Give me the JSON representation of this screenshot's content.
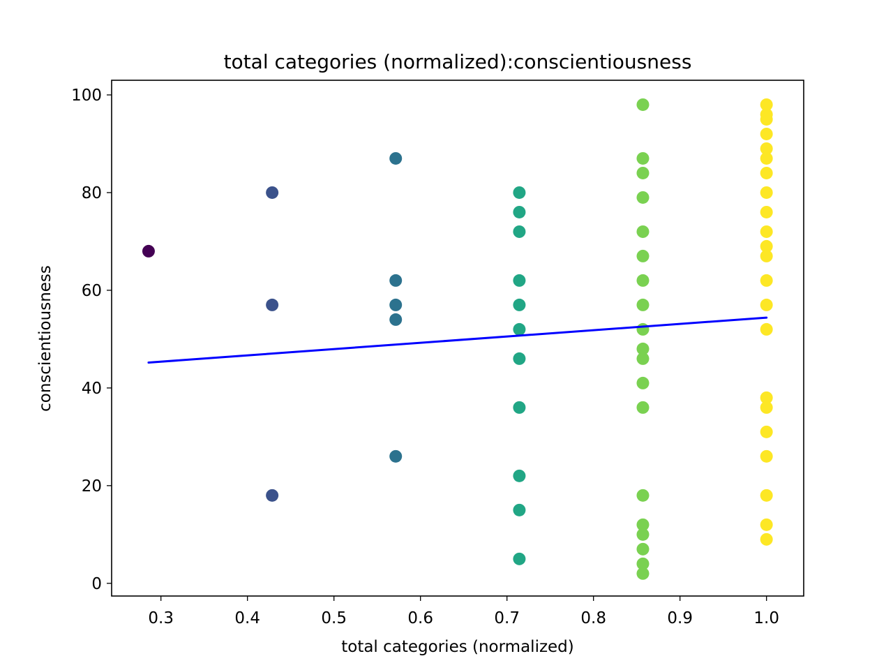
{
  "chart_data": {
    "type": "scatter",
    "title": "total categories (normalized):conscientiousness",
    "xlabel": "total categories (normalized)",
    "ylabel": "conscientiousness",
    "xlim": [
      0.243,
      1.043
    ],
    "ylim": [
      -2.6,
      103.0
    ],
    "xticks": [
      0.3,
      0.4,
      0.5,
      0.6,
      0.7,
      0.8,
      0.9,
      1.0
    ],
    "xtick_labels": [
      "0.3",
      "0.4",
      "0.5",
      "0.6",
      "0.7",
      "0.8",
      "0.9",
      "1.0"
    ],
    "yticks": [
      0,
      20,
      40,
      60,
      80,
      100
    ],
    "ytick_labels": [
      "0",
      "20",
      "40",
      "60",
      "80",
      "100"
    ],
    "grid": false,
    "legend": "none",
    "colormap": "viridis",
    "point_groups": [
      {
        "x": 0.2857,
        "color": "#440154",
        "y": [
          68
        ]
      },
      {
        "x": 0.4286,
        "color": "#3b528b",
        "y": [
          80,
          57,
          18
        ]
      },
      {
        "x": 0.5714,
        "color": "#2c728e",
        "y": [
          87,
          62,
          57,
          54,
          26
        ]
      },
      {
        "x": 0.7143,
        "color": "#21a685",
        "y": [
          80,
          76,
          72,
          62,
          57,
          52,
          46,
          36,
          22,
          15,
          5
        ]
      },
      {
        "x": 0.8571,
        "color": "#7ad151",
        "y": [
          98,
          87,
          84,
          79,
          72,
          67,
          62,
          57,
          52,
          48,
          46,
          41,
          36,
          18,
          12,
          10,
          7,
          4,
          2
        ]
      },
      {
        "x": 1.0,
        "color": "#fde725",
        "y": [
          98,
          96,
          95,
          92,
          89,
          87,
          84,
          80,
          76,
          72,
          69,
          67,
          62,
          57,
          52,
          38,
          36,
          31,
          26,
          18,
          12,
          9
        ]
      }
    ],
    "trendline": {
      "color": "#0000ff",
      "points": [
        {
          "x": 0.2857,
          "y": 45.2
        },
        {
          "x": 1.0,
          "y": 54.4
        }
      ]
    }
  }
}
